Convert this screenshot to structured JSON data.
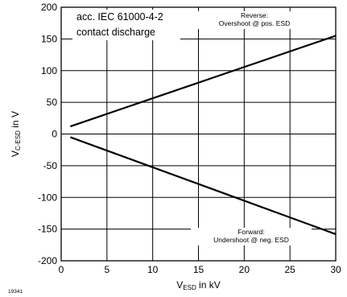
{
  "chart_data": {
    "type": "line",
    "x": [
      1,
      30
    ],
    "series": [
      {
        "values": [
          12,
          155
        ]
      },
      {
        "values": [
          -5,
          -158
        ]
      }
    ],
    "xlim": [
      0,
      30
    ],
    "ylim": [
      -200,
      200
    ],
    "xticks": [
      0,
      5,
      10,
      15,
      20,
      25,
      30
    ],
    "yticks": [
      -200,
      -150,
      -100,
      -50,
      0,
      50,
      100,
      150,
      200
    ],
    "grid": true,
    "ylabel": {
      "main": "V",
      "sub": "C-ESD",
      "suffix": " in V"
    },
    "xlabel": {
      "main": "V",
      "sub": "ESD",
      "suffix": "  in kV"
    },
    "annotations": {
      "standard_line1": "acc. IEC 61000-4-2",
      "standard_line2": "contact discharge",
      "reverse_line1": "Reverse:",
      "reverse_line2": "Overshoot @ pos. ESD",
      "forward_line1": "Forward:",
      "forward_line2": "Undershoot @ neg. ESD"
    },
    "figure_number": "19341"
  }
}
